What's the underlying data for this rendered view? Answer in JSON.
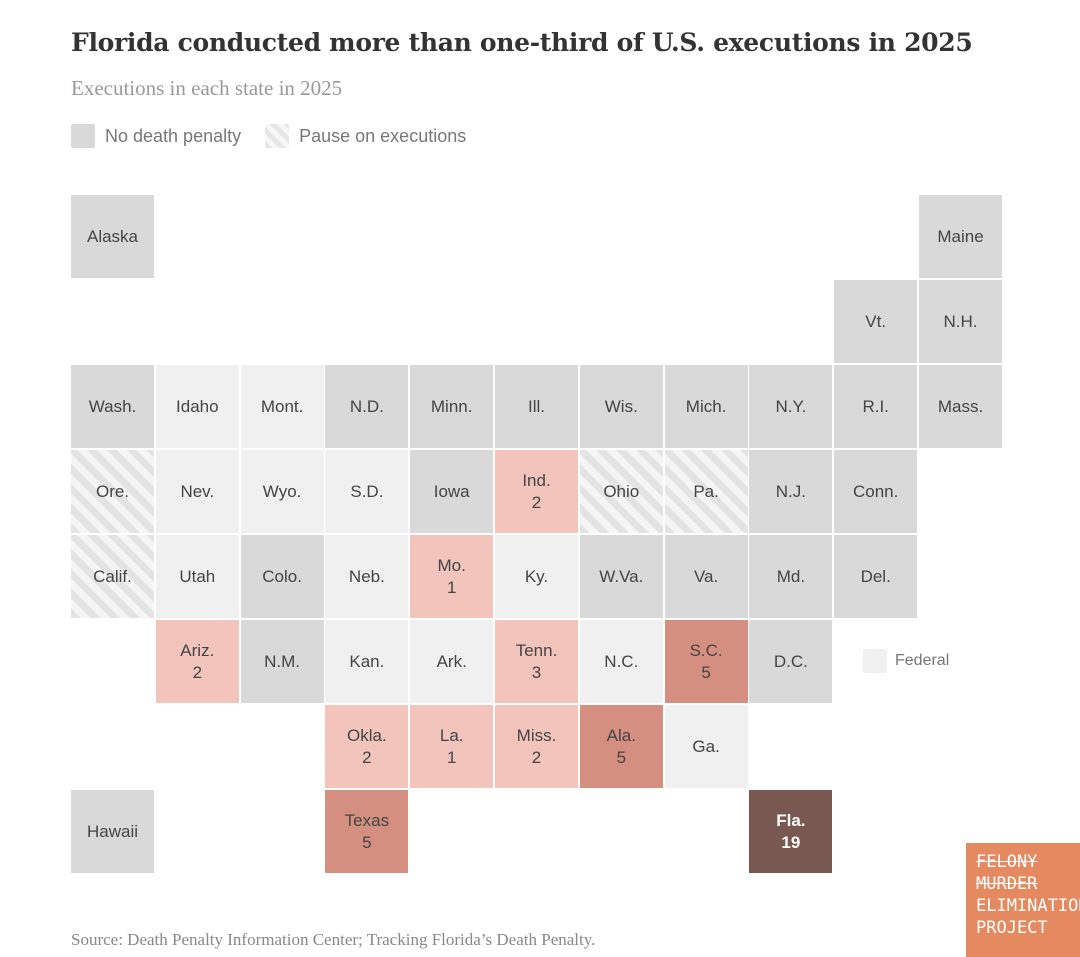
{
  "title": "Florida conducted more than one-third of U.S. executions in 2025",
  "subtitle": "Executions in each state in 2025",
  "legend": {
    "no_death_penalty": "No death penalty",
    "pause": "Pause on executions",
    "federal": "Federal"
  },
  "source": "Source: Death Penalty Information Center; Tracking Florida’s Death Penalty.",
  "logo": {
    "lines": [
      "FELONY",
      "MURDER",
      "ELIMINATION",
      "PROJECT"
    ]
  },
  "colors": {
    "no_death_penalty": "#d9d9d9",
    "death_penalty": "#f0f0f0",
    "low": "#f2c4bc",
    "mid": "#d48f80",
    "high": "#785850"
  },
  "chart_data": {
    "type": "heatmap",
    "title": "Florida conducted more than one-third of U.S. executions in 2025",
    "tiles": [
      {
        "state": "Alaska",
        "col": 0,
        "row": 0,
        "status": "no_death_penalty"
      },
      {
        "state": "Maine",
        "col": 10,
        "row": 0,
        "status": "no_death_penalty"
      },
      {
        "state": "Vt.",
        "col": 9,
        "row": 1,
        "status": "no_death_penalty"
      },
      {
        "state": "N.H.",
        "col": 10,
        "row": 1,
        "status": "no_death_penalty"
      },
      {
        "state": "Wash.",
        "col": 0,
        "row": 2,
        "status": "no_death_penalty"
      },
      {
        "state": "Idaho",
        "col": 1,
        "row": 2,
        "status": "death_penalty"
      },
      {
        "state": "Mont.",
        "col": 2,
        "row": 2,
        "status": "death_penalty"
      },
      {
        "state": "N.D.",
        "col": 3,
        "row": 2,
        "status": "no_death_penalty"
      },
      {
        "state": "Minn.",
        "col": 4,
        "row": 2,
        "status": "no_death_penalty"
      },
      {
        "state": "Ill.",
        "col": 5,
        "row": 2,
        "status": "no_death_penalty"
      },
      {
        "state": "Wis.",
        "col": 6,
        "row": 2,
        "status": "no_death_penalty"
      },
      {
        "state": "Mich.",
        "col": 7,
        "row": 2,
        "status": "no_death_penalty"
      },
      {
        "state": "N.Y.",
        "col": 8,
        "row": 2,
        "status": "no_death_penalty"
      },
      {
        "state": "R.I.",
        "col": 9,
        "row": 2,
        "status": "no_death_penalty"
      },
      {
        "state": "Mass.",
        "col": 10,
        "row": 2,
        "status": "no_death_penalty"
      },
      {
        "state": "Ore.",
        "col": 0,
        "row": 3,
        "status": "pause"
      },
      {
        "state": "Nev.",
        "col": 1,
        "row": 3,
        "status": "death_penalty"
      },
      {
        "state": "Wyo.",
        "col": 2,
        "row": 3,
        "status": "death_penalty"
      },
      {
        "state": "S.D.",
        "col": 3,
        "row": 3,
        "status": "death_penalty"
      },
      {
        "state": "Iowa",
        "col": 4,
        "row": 3,
        "status": "no_death_penalty"
      },
      {
        "state": "Ind.",
        "col": 5,
        "row": 3,
        "status": "death_penalty",
        "executions": 2
      },
      {
        "state": "Ohio",
        "col": 6,
        "row": 3,
        "status": "pause"
      },
      {
        "state": "Pa.",
        "col": 7,
        "row": 3,
        "status": "pause"
      },
      {
        "state": "N.J.",
        "col": 8,
        "row": 3,
        "status": "no_death_penalty"
      },
      {
        "state": "Conn.",
        "col": 9,
        "row": 3,
        "status": "no_death_penalty"
      },
      {
        "state": "Calif.",
        "col": 0,
        "row": 4,
        "status": "pause"
      },
      {
        "state": "Utah",
        "col": 1,
        "row": 4,
        "status": "death_penalty"
      },
      {
        "state": "Colo.",
        "col": 2,
        "row": 4,
        "status": "no_death_penalty"
      },
      {
        "state": "Neb.",
        "col": 3,
        "row": 4,
        "status": "death_penalty"
      },
      {
        "state": "Mo.",
        "col": 4,
        "row": 4,
        "status": "death_penalty",
        "executions": 1
      },
      {
        "state": "Ky.",
        "col": 5,
        "row": 4,
        "status": "death_penalty"
      },
      {
        "state": "W.Va.",
        "col": 6,
        "row": 4,
        "status": "no_death_penalty"
      },
      {
        "state": "Va.",
        "col": 7,
        "row": 4,
        "status": "no_death_penalty"
      },
      {
        "state": "Md.",
        "col": 8,
        "row": 4,
        "status": "no_death_penalty"
      },
      {
        "state": "Del.",
        "col": 9,
        "row": 4,
        "status": "no_death_penalty"
      },
      {
        "state": "Ariz.",
        "col": 1,
        "row": 5,
        "status": "death_penalty",
        "executions": 2
      },
      {
        "state": "N.M.",
        "col": 2,
        "row": 5,
        "status": "no_death_penalty"
      },
      {
        "state": "Kan.",
        "col": 3,
        "row": 5,
        "status": "death_penalty"
      },
      {
        "state": "Ark.",
        "col": 4,
        "row": 5,
        "status": "death_penalty"
      },
      {
        "state": "Tenn.",
        "col": 5,
        "row": 5,
        "status": "death_penalty",
        "executions": 3
      },
      {
        "state": "N.C.",
        "col": 6,
        "row": 5,
        "status": "death_penalty"
      },
      {
        "state": "S.C.",
        "col": 7,
        "row": 5,
        "status": "death_penalty",
        "executions": 5
      },
      {
        "state": "D.C.",
        "col": 8,
        "row": 5,
        "status": "no_death_penalty"
      },
      {
        "state": "Okla.",
        "col": 3,
        "row": 6,
        "status": "death_penalty",
        "executions": 2
      },
      {
        "state": "La.",
        "col": 4,
        "row": 6,
        "status": "death_penalty",
        "executions": 1
      },
      {
        "state": "Miss.",
        "col": 5,
        "row": 6,
        "status": "death_penalty",
        "executions": 2
      },
      {
        "state": "Ala.",
        "col": 6,
        "row": 6,
        "status": "death_penalty",
        "executions": 5
      },
      {
        "state": "Ga.",
        "col": 7,
        "row": 6,
        "status": "death_penalty"
      },
      {
        "state": "Hawaii",
        "col": 0,
        "row": 7,
        "status": "no_death_penalty"
      },
      {
        "state": "Texas",
        "col": 3,
        "row": 7,
        "status": "death_penalty",
        "executions": 5
      },
      {
        "state": "Fla.",
        "col": 8,
        "row": 7,
        "status": "death_penalty",
        "executions": 19
      }
    ]
  }
}
